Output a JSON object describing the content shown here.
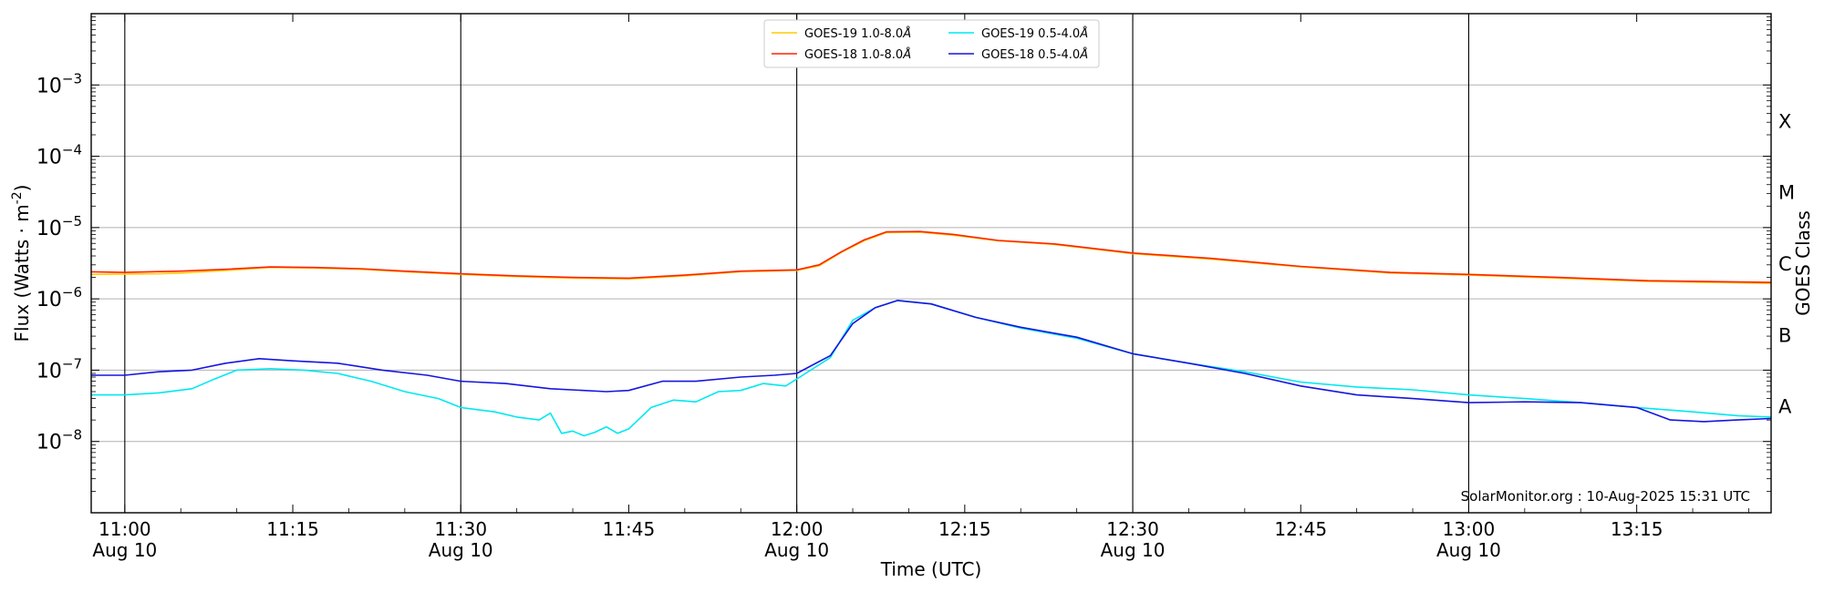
{
  "chart_data": {
    "type": "line",
    "title": "",
    "xlabel": "Time (UTC)",
    "ylabel": "Flux (Watts · m",
    "ylabel_sup": "-2",
    "ylabel_close": ")",
    "y2label": "GOES Class",
    "yscale": "log",
    "ylim": [
      1e-09,
      0.01
    ],
    "xlim": [
      "2025-08-10 10:57",
      "2025-08-10 13:27"
    ],
    "grid": "horizontal",
    "legend_placement": "top-center",
    "x_ticks": [
      {
        "t": "2025-08-10 11:00",
        "time": "11:00",
        "date": "Aug 10"
      },
      {
        "t": "2025-08-10 11:15",
        "time": "11:15",
        "date": ""
      },
      {
        "t": "2025-08-10 11:30",
        "time": "11:30",
        "date": "Aug 10"
      },
      {
        "t": "2025-08-10 11:45",
        "time": "11:45",
        "date": ""
      },
      {
        "t": "2025-08-10 12:00",
        "time": "12:00",
        "date": "Aug 10"
      },
      {
        "t": "2025-08-10 12:15",
        "time": "12:15",
        "date": ""
      },
      {
        "t": "2025-08-10 12:30",
        "time": "12:30",
        "date": "Aug 10"
      },
      {
        "t": "2025-08-10 12:45",
        "time": "12:45",
        "date": ""
      },
      {
        "t": "2025-08-10 13:00",
        "time": "13:00",
        "date": "Aug 10"
      },
      {
        "t": "2025-08-10 13:15",
        "time": "13:15",
        "date": ""
      }
    ],
    "y_ticks": [
      {
        "value": 1e-08,
        "base": "10",
        "exp": "−8"
      },
      {
        "value": 1e-07,
        "base": "10",
        "exp": "−7"
      },
      {
        "value": 1e-06,
        "base": "10",
        "exp": "−6"
      },
      {
        "value": 1e-05,
        "base": "10",
        "exp": "−5"
      },
      {
        "value": 0.0001,
        "base": "10",
        "exp": "−4"
      },
      {
        "value": 0.001,
        "base": "10",
        "exp": "−3"
      }
    ],
    "vertical_lines": [
      "2025-08-10 11:00",
      "2025-08-10 11:30",
      "2025-08-10 12:00",
      "2025-08-10 12:30",
      "2025-08-10 13:00"
    ],
    "goes_classes": [
      {
        "label": "A",
        "value": 1e-08
      },
      {
        "label": "B",
        "value": 1e-07
      },
      {
        "label": "C",
        "value": 1e-06
      },
      {
        "label": "M",
        "value": 1e-05
      },
      {
        "label": "X",
        "value": 0.0001
      }
    ],
    "annotation": "SolarMonitor.org : 10-Aug-2025 15:31 UTC",
    "series": [
      {
        "name": "GOES-19 1.0-8.0",
        "unit": "Å",
        "color": "#ffcc00",
        "points": [
          [
            "2025-08-10 10:57",
            2.2e-06
          ],
          [
            "2025-08-10 11:03",
            2.25e-06
          ],
          [
            "2025-08-10 11:05",
            2.3e-06
          ],
          [
            "2025-08-10 11:09",
            2.5e-06
          ],
          [
            "2025-08-10 11:13",
            2.75e-06
          ],
          [
            "2025-08-10 11:17",
            2.7e-06
          ],
          [
            "2025-08-10 11:21",
            2.6e-06
          ],
          [
            "2025-08-10 11:25",
            2.4e-06
          ],
          [
            "2025-08-10 11:30",
            2.2e-06
          ],
          [
            "2025-08-10 11:35",
            2.05e-06
          ],
          [
            "2025-08-10 11:40",
            1.95e-06
          ],
          [
            "2025-08-10 11:45",
            1.9e-06
          ],
          [
            "2025-08-10 11:50",
            2.1e-06
          ],
          [
            "2025-08-10 11:55",
            2.4e-06
          ],
          [
            "2025-08-10 12:00",
            2.5e-06
          ],
          [
            "2025-08-10 12:02",
            2.9e-06
          ],
          [
            "2025-08-10 12:04",
            4.5e-06
          ],
          [
            "2025-08-10 12:06",
            6.5e-06
          ],
          [
            "2025-08-10 12:08",
            8.5e-06
          ],
          [
            "2025-08-10 12:11",
            8.6e-06
          ],
          [
            "2025-08-10 12:14",
            7.8e-06
          ],
          [
            "2025-08-10 12:18",
            6.5e-06
          ],
          [
            "2025-08-10 12:23",
            5.8e-06
          ],
          [
            "2025-08-10 12:30",
            4.3e-06
          ],
          [
            "2025-08-10 12:37",
            3.6e-06
          ],
          [
            "2025-08-10 12:45",
            2.8e-06
          ],
          [
            "2025-08-10 12:53",
            2.3e-06
          ],
          [
            "2025-08-10 13:00",
            2.15e-06
          ],
          [
            "2025-08-10 13:08",
            1.95e-06
          ],
          [
            "2025-08-10 13:16",
            1.75e-06
          ],
          [
            "2025-08-10 13:27",
            1.65e-06
          ]
        ]
      },
      {
        "name": "GOES-18 1.0-8.0",
        "unit": "Å",
        "color": "#ff2200",
        "points": [
          [
            "2025-08-10 10:57",
            2.4e-06
          ],
          [
            "2025-08-10 11:00",
            2.35e-06
          ],
          [
            "2025-08-10 11:05",
            2.45e-06
          ],
          [
            "2025-08-10 11:09",
            2.6e-06
          ],
          [
            "2025-08-10 11:13",
            2.8e-06
          ],
          [
            "2025-08-10 11:17",
            2.75e-06
          ],
          [
            "2025-08-10 11:21",
            2.65e-06
          ],
          [
            "2025-08-10 11:25",
            2.45e-06
          ],
          [
            "2025-08-10 11:30",
            2.25e-06
          ],
          [
            "2025-08-10 11:35",
            2.1e-06
          ],
          [
            "2025-08-10 11:40",
            2e-06
          ],
          [
            "2025-08-10 11:45",
            1.95e-06
          ],
          [
            "2025-08-10 11:50",
            2.15e-06
          ],
          [
            "2025-08-10 11:55",
            2.45e-06
          ],
          [
            "2025-08-10 12:00",
            2.55e-06
          ],
          [
            "2025-08-10 12:02",
            3e-06
          ],
          [
            "2025-08-10 12:04",
            4.6e-06
          ],
          [
            "2025-08-10 12:06",
            6.7e-06
          ],
          [
            "2025-08-10 12:08",
            8.7e-06
          ],
          [
            "2025-08-10 12:11",
            8.8e-06
          ],
          [
            "2025-08-10 12:14",
            8e-06
          ],
          [
            "2025-08-10 12:18",
            6.6e-06
          ],
          [
            "2025-08-10 12:23",
            5.9e-06
          ],
          [
            "2025-08-10 12:30",
            4.4e-06
          ],
          [
            "2025-08-10 12:37",
            3.7e-06
          ],
          [
            "2025-08-10 12:45",
            2.85e-06
          ],
          [
            "2025-08-10 12:53",
            2.35e-06
          ],
          [
            "2025-08-10 13:00",
            2.2e-06
          ],
          [
            "2025-08-10 13:08",
            2e-06
          ],
          [
            "2025-08-10 13:16",
            1.8e-06
          ],
          [
            "2025-08-10 13:27",
            1.7e-06
          ]
        ]
      },
      {
        "name": "GOES-19 0.5-4.0",
        "unit": "Å",
        "color": "#00e8f0",
        "points": [
          [
            "2025-08-10 10:57",
            4.5e-08
          ],
          [
            "2025-08-10 11:00",
            4.5e-08
          ],
          [
            "2025-08-10 11:03",
            4.8e-08
          ],
          [
            "2025-08-10 11:06",
            5.5e-08
          ],
          [
            "2025-08-10 11:08",
            7.5e-08
          ],
          [
            "2025-08-10 11:10",
            1e-07
          ],
          [
            "2025-08-10 11:13",
            1.05e-07
          ],
          [
            "2025-08-10 11:16",
            1e-07
          ],
          [
            "2025-08-10 11:19",
            9e-08
          ],
          [
            "2025-08-10 11:22",
            7e-08
          ],
          [
            "2025-08-10 11:25",
            5e-08
          ],
          [
            "2025-08-10 11:28",
            4e-08
          ],
          [
            "2025-08-10 11:30",
            3e-08
          ],
          [
            "2025-08-10 11:33",
            2.6e-08
          ],
          [
            "2025-08-10 11:35",
            2.2e-08
          ],
          [
            "2025-08-10 11:37",
            2e-08
          ],
          [
            "2025-08-10 11:38",
            2.5e-08
          ],
          [
            "2025-08-10 11:39",
            1.3e-08
          ],
          [
            "2025-08-10 11:40",
            1.4e-08
          ],
          [
            "2025-08-10 11:41",
            1.2e-08
          ],
          [
            "2025-08-10 11:42",
            1.35e-08
          ],
          [
            "2025-08-10 11:43",
            1.6e-08
          ],
          [
            "2025-08-10 11:44",
            1.3e-08
          ],
          [
            "2025-08-10 11:45",
            1.5e-08
          ],
          [
            "2025-08-10 11:47",
            3e-08
          ],
          [
            "2025-08-10 11:49",
            3.8e-08
          ],
          [
            "2025-08-10 11:51",
            3.6e-08
          ],
          [
            "2025-08-10 11:53",
            5e-08
          ],
          [
            "2025-08-10 11:55",
            5.2e-08
          ],
          [
            "2025-08-10 11:57",
            6.5e-08
          ],
          [
            "2025-08-10 11:59",
            6e-08
          ],
          [
            "2025-08-10 12:00",
            7.5e-08
          ],
          [
            "2025-08-10 12:03",
            1.5e-07
          ],
          [
            "2025-08-10 12:05",
            5e-07
          ],
          [
            "2025-08-10 12:07",
            7.5e-07
          ],
          [
            "2025-08-10 12:09",
            9.5e-07
          ],
          [
            "2025-08-10 12:12",
            8.5e-07
          ],
          [
            "2025-08-10 12:16",
            5.5e-07
          ],
          [
            "2025-08-10 12:20",
            3.9e-07
          ],
          [
            "2025-08-10 12:25",
            2.8e-07
          ],
          [
            "2025-08-10 12:30",
            1.7e-07
          ],
          [
            "2025-08-10 12:35",
            1.25e-07
          ],
          [
            "2025-08-10 12:40",
            9.5e-08
          ],
          [
            "2025-08-10 12:45",
            6.8e-08
          ],
          [
            "2025-08-10 12:50",
            5.8e-08
          ],
          [
            "2025-08-10 12:55",
            5.3e-08
          ],
          [
            "2025-08-10 13:00",
            4.5e-08
          ],
          [
            "2025-08-10 13:05",
            4e-08
          ],
          [
            "2025-08-10 13:10",
            3.5e-08
          ],
          [
            "2025-08-10 13:15",
            3e-08
          ],
          [
            "2025-08-10 13:20",
            2.6e-08
          ],
          [
            "2025-08-10 13:24",
            2.3e-08
          ],
          [
            "2025-08-10 13:27",
            2.2e-08
          ]
        ]
      },
      {
        "name": "GOES-18 0.5-4.0",
        "unit": "Å",
        "color": "#1515e0",
        "points": [
          [
            "2025-08-10 10:57",
            8.5e-08
          ],
          [
            "2025-08-10 11:00",
            8.5e-08
          ],
          [
            "2025-08-10 11:03",
            9.5e-08
          ],
          [
            "2025-08-10 11:06",
            1e-07
          ],
          [
            "2025-08-10 11:09",
            1.25e-07
          ],
          [
            "2025-08-10 11:12",
            1.45e-07
          ],
          [
            "2025-08-10 11:15",
            1.35e-07
          ],
          [
            "2025-08-10 11:19",
            1.25e-07
          ],
          [
            "2025-08-10 11:23",
            1e-07
          ],
          [
            "2025-08-10 11:27",
            8.5e-08
          ],
          [
            "2025-08-10 11:30",
            7e-08
          ],
          [
            "2025-08-10 11:34",
            6.5e-08
          ],
          [
            "2025-08-10 11:38",
            5.5e-08
          ],
          [
            "2025-08-10 11:43",
            5e-08
          ],
          [
            "2025-08-10 11:45",
            5.2e-08
          ],
          [
            "2025-08-10 11:48",
            7e-08
          ],
          [
            "2025-08-10 11:51",
            7e-08
          ],
          [
            "2025-08-10 11:55",
            8e-08
          ],
          [
            "2025-08-10 11:58",
            8.5e-08
          ],
          [
            "2025-08-10 12:00",
            9e-08
          ],
          [
            "2025-08-10 12:03",
            1.6e-07
          ],
          [
            "2025-08-10 12:05",
            4.5e-07
          ],
          [
            "2025-08-10 12:07",
            7.5e-07
          ],
          [
            "2025-08-10 12:09",
            9.5e-07
          ],
          [
            "2025-08-10 12:12",
            8.5e-07
          ],
          [
            "2025-08-10 12:16",
            5.5e-07
          ],
          [
            "2025-08-10 12:20",
            4e-07
          ],
          [
            "2025-08-10 12:25",
            2.9e-07
          ],
          [
            "2025-08-10 12:30",
            1.7e-07
          ],
          [
            "2025-08-10 12:35",
            1.25e-07
          ],
          [
            "2025-08-10 12:40",
            9e-08
          ],
          [
            "2025-08-10 12:45",
            6e-08
          ],
          [
            "2025-08-10 12:50",
            4.5e-08
          ],
          [
            "2025-08-10 12:55",
            4e-08
          ],
          [
            "2025-08-10 13:00",
            3.5e-08
          ],
          [
            "2025-08-10 13:05",
            3.6e-08
          ],
          [
            "2025-08-10 13:10",
            3.5e-08
          ],
          [
            "2025-08-10 13:15",
            3e-08
          ],
          [
            "2025-08-10 13:18",
            2e-08
          ],
          [
            "2025-08-10 13:21",
            1.9e-08
          ],
          [
            "2025-08-10 13:24",
            2e-08
          ],
          [
            "2025-08-10 13:27",
            2.1e-08
          ]
        ]
      }
    ]
  }
}
